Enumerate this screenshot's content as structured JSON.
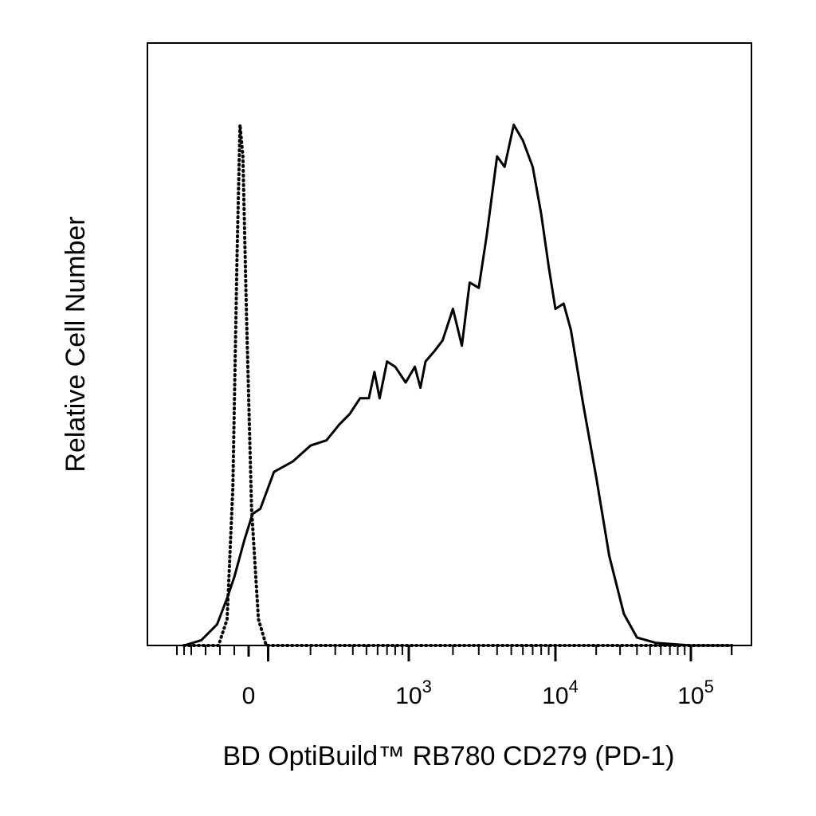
{
  "chart_data": {
    "type": "line",
    "title": "",
    "xlabel": "BD OptiBuild™ RB780 CD279 (PD-1)",
    "ylabel": "Relative Cell Number",
    "x_scale": "biexponential (linear near 0, log above)",
    "xlim": [
      -500,
      200000
    ],
    "ylim": [
      0,
      1
    ],
    "grid": false,
    "x_tick_labels": [
      {
        "value": 0,
        "base": "0",
        "exp": ""
      },
      {
        "value": 1000,
        "base": "10",
        "exp": "3"
      },
      {
        "value": 10000,
        "base": "10",
        "exp": "4"
      },
      {
        "value": 100000,
        "base": "10",
        "exp": "5"
      }
    ],
    "series": [
      {
        "style": "solid",
        "color": "#000000",
        "points": [
          [
            -450,
            0.0
          ],
          [
            -330,
            0.01
          ],
          [
            -220,
            0.04
          ],
          [
            -150,
            0.09
          ],
          [
            -100,
            0.13
          ],
          [
            -30,
            0.2
          ],
          [
            20,
            0.25
          ],
          [
            60,
            0.26
          ],
          [
            110,
            0.33
          ],
          [
            150,
            0.35
          ],
          [
            200,
            0.38
          ],
          [
            260,
            0.39
          ],
          [
            320,
            0.42
          ],
          [
            380,
            0.44
          ],
          [
            450,
            0.47
          ],
          [
            520,
            0.47
          ],
          [
            570,
            0.52
          ],
          [
            620,
            0.47
          ],
          [
            700,
            0.54
          ],
          [
            800,
            0.53
          ],
          [
            950,
            0.5
          ],
          [
            1100,
            0.53
          ],
          [
            1200,
            0.49
          ],
          [
            1300,
            0.54
          ],
          [
            1500,
            0.56
          ],
          [
            1700,
            0.58
          ],
          [
            2000,
            0.64
          ],
          [
            2300,
            0.57
          ],
          [
            2600,
            0.69
          ],
          [
            3000,
            0.68
          ],
          [
            3400,
            0.78
          ],
          [
            4000,
            0.93
          ],
          [
            4500,
            0.91
          ],
          [
            5200,
            0.99
          ],
          [
            6000,
            0.96
          ],
          [
            7000,
            0.91
          ],
          [
            8000,
            0.82
          ],
          [
            9000,
            0.72
          ],
          [
            10000,
            0.64
          ],
          [
            11500,
            0.65
          ],
          [
            13000,
            0.6
          ],
          [
            16000,
            0.46
          ],
          [
            20000,
            0.32
          ],
          [
            25000,
            0.17
          ],
          [
            32000,
            0.06
          ],
          [
            40000,
            0.015
          ],
          [
            55000,
            0.005
          ],
          [
            100000,
            0.0
          ],
          [
            200000,
            0.0
          ]
        ]
      },
      {
        "style": "dotted",
        "color": "#000000",
        "points": [
          [
            -450,
            0.0
          ],
          [
            -210,
            0.0
          ],
          [
            -150,
            0.05
          ],
          [
            -110,
            0.3
          ],
          [
            -80,
            0.75
          ],
          [
            -60,
            0.99
          ],
          [
            -40,
            0.93
          ],
          [
            -15,
            0.63
          ],
          [
            15,
            0.26
          ],
          [
            50,
            0.05
          ],
          [
            90,
            0.0
          ],
          [
            200000,
            0.0
          ]
        ]
      }
    ]
  }
}
